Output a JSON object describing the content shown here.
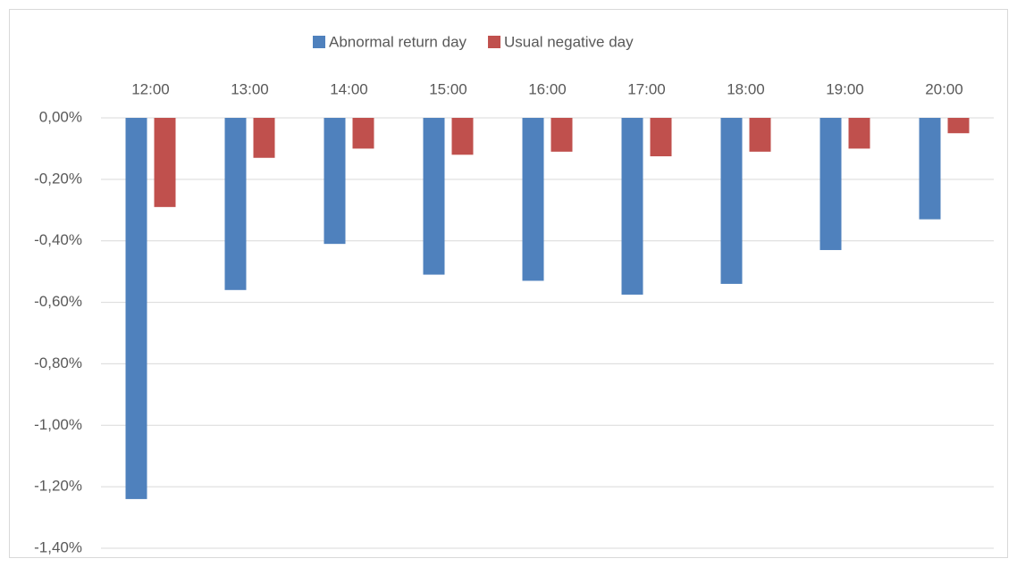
{
  "chart_data": {
    "type": "bar",
    "categories": [
      "12:00",
      "13:00",
      "14:00",
      "15:00",
      "16:00",
      "17:00",
      "18:00",
      "19:00",
      "20:00"
    ],
    "series": [
      {
        "name": "Abnormal return day",
        "color": "#4f81bd",
        "values": [
          -1.24,
          -0.56,
          -0.41,
          -0.51,
          -0.53,
          -0.575,
          -0.54,
          -0.43,
          -0.33
        ]
      },
      {
        "name": "Usual negative day",
        "color": "#c0504d",
        "values": [
          -0.29,
          -0.13,
          -0.1,
          -0.12,
          -0.11,
          -0.125,
          -0.11,
          -0.1,
          -0.05
        ]
      }
    ],
    "ylim": [
      -1.4,
      0
    ],
    "yticks": [
      {
        "value": 0,
        "label": "0,00%"
      },
      {
        "value": -0.2,
        "label": "-0,20%"
      },
      {
        "value": -0.4,
        "label": "-0,40%"
      },
      {
        "value": -0.6,
        "label": "-0,60%"
      },
      {
        "value": -0.8,
        "label": "-0,80%"
      },
      {
        "value": -1.0,
        "label": "-1,00%"
      },
      {
        "value": -1.2,
        "label": "-1,20%"
      },
      {
        "value": -1.4,
        "label": "-1,40%"
      }
    ],
    "grid": true,
    "legend": "top"
  }
}
